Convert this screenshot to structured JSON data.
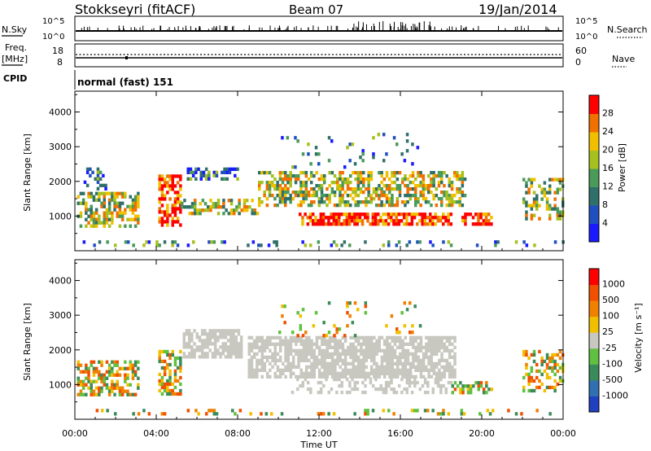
{
  "header": {
    "station": "Stokkseyri (fitACF)",
    "beam": "Beam 07",
    "date": "19/Jan/2014"
  },
  "status_panels": {
    "sky_label": "N.Sky",
    "sky_ticks": [
      "10^5",
      "10^0"
    ],
    "search_label": "N.Search",
    "search_ticks": [
      "10^5",
      "10^0"
    ],
    "freq_label_1": "Freq.",
    "freq_label_2": "[MHz]",
    "freq_ticks": [
      "18",
      "8"
    ],
    "nave_label": "Nave",
    "nave_ticks": [
      "60",
      "0"
    ],
    "cpid_label": "CPID",
    "cpid_value": "normal (fast) 151"
  },
  "chart_data": [
    {
      "type": "heatmap",
      "name": "power",
      "ylabel": "Slant Range [km]",
      "yticks": [
        "1000",
        "2000",
        "3000",
        "4000"
      ],
      "ylim": [
        0,
        4600
      ],
      "xticks": [
        "00:00",
        "04:00",
        "08:00",
        "12:00",
        "16:00",
        "20:00",
        "00:00"
      ],
      "xlim_hours": [
        0,
        24
      ],
      "colorbar": {
        "label": "Power [dB]",
        "ticks": [
          "28",
          "24",
          "20",
          "16",
          "12",
          "8",
          "4"
        ],
        "colors": [
          "#1a1aff",
          "#2050c0",
          "#30706a",
          "#4a9a5a",
          "#a6c020",
          "#f0c000",
          "#f07000",
          "#ff0000"
        ]
      }
    },
    {
      "type": "heatmap",
      "name": "velocity",
      "ylabel": "Slant Range [km]",
      "yticks": [
        "1000",
        "2000",
        "3000",
        "4000"
      ],
      "ylim": [
        0,
        4600
      ],
      "xticks": [
        "00:00",
        "04:00",
        "08:00",
        "12:00",
        "16:00",
        "20:00",
        "00:00"
      ],
      "xlim_hours": [
        0,
        24
      ],
      "xlabel": "Time UT",
      "colorbar": {
        "label": "Velocity [m s⁻¹]",
        "ticks": [
          "1000",
          "500",
          "100",
          "25",
          "-25",
          "-100",
          "-500",
          "-1000"
        ],
        "colors": [
          "#2040c0",
          "#3070b0",
          "#3a8a5a",
          "#60c040",
          "#c8c8c0",
          "#f0c000",
          "#f08000",
          "#f05000",
          "#ff0000"
        ]
      }
    }
  ]
}
